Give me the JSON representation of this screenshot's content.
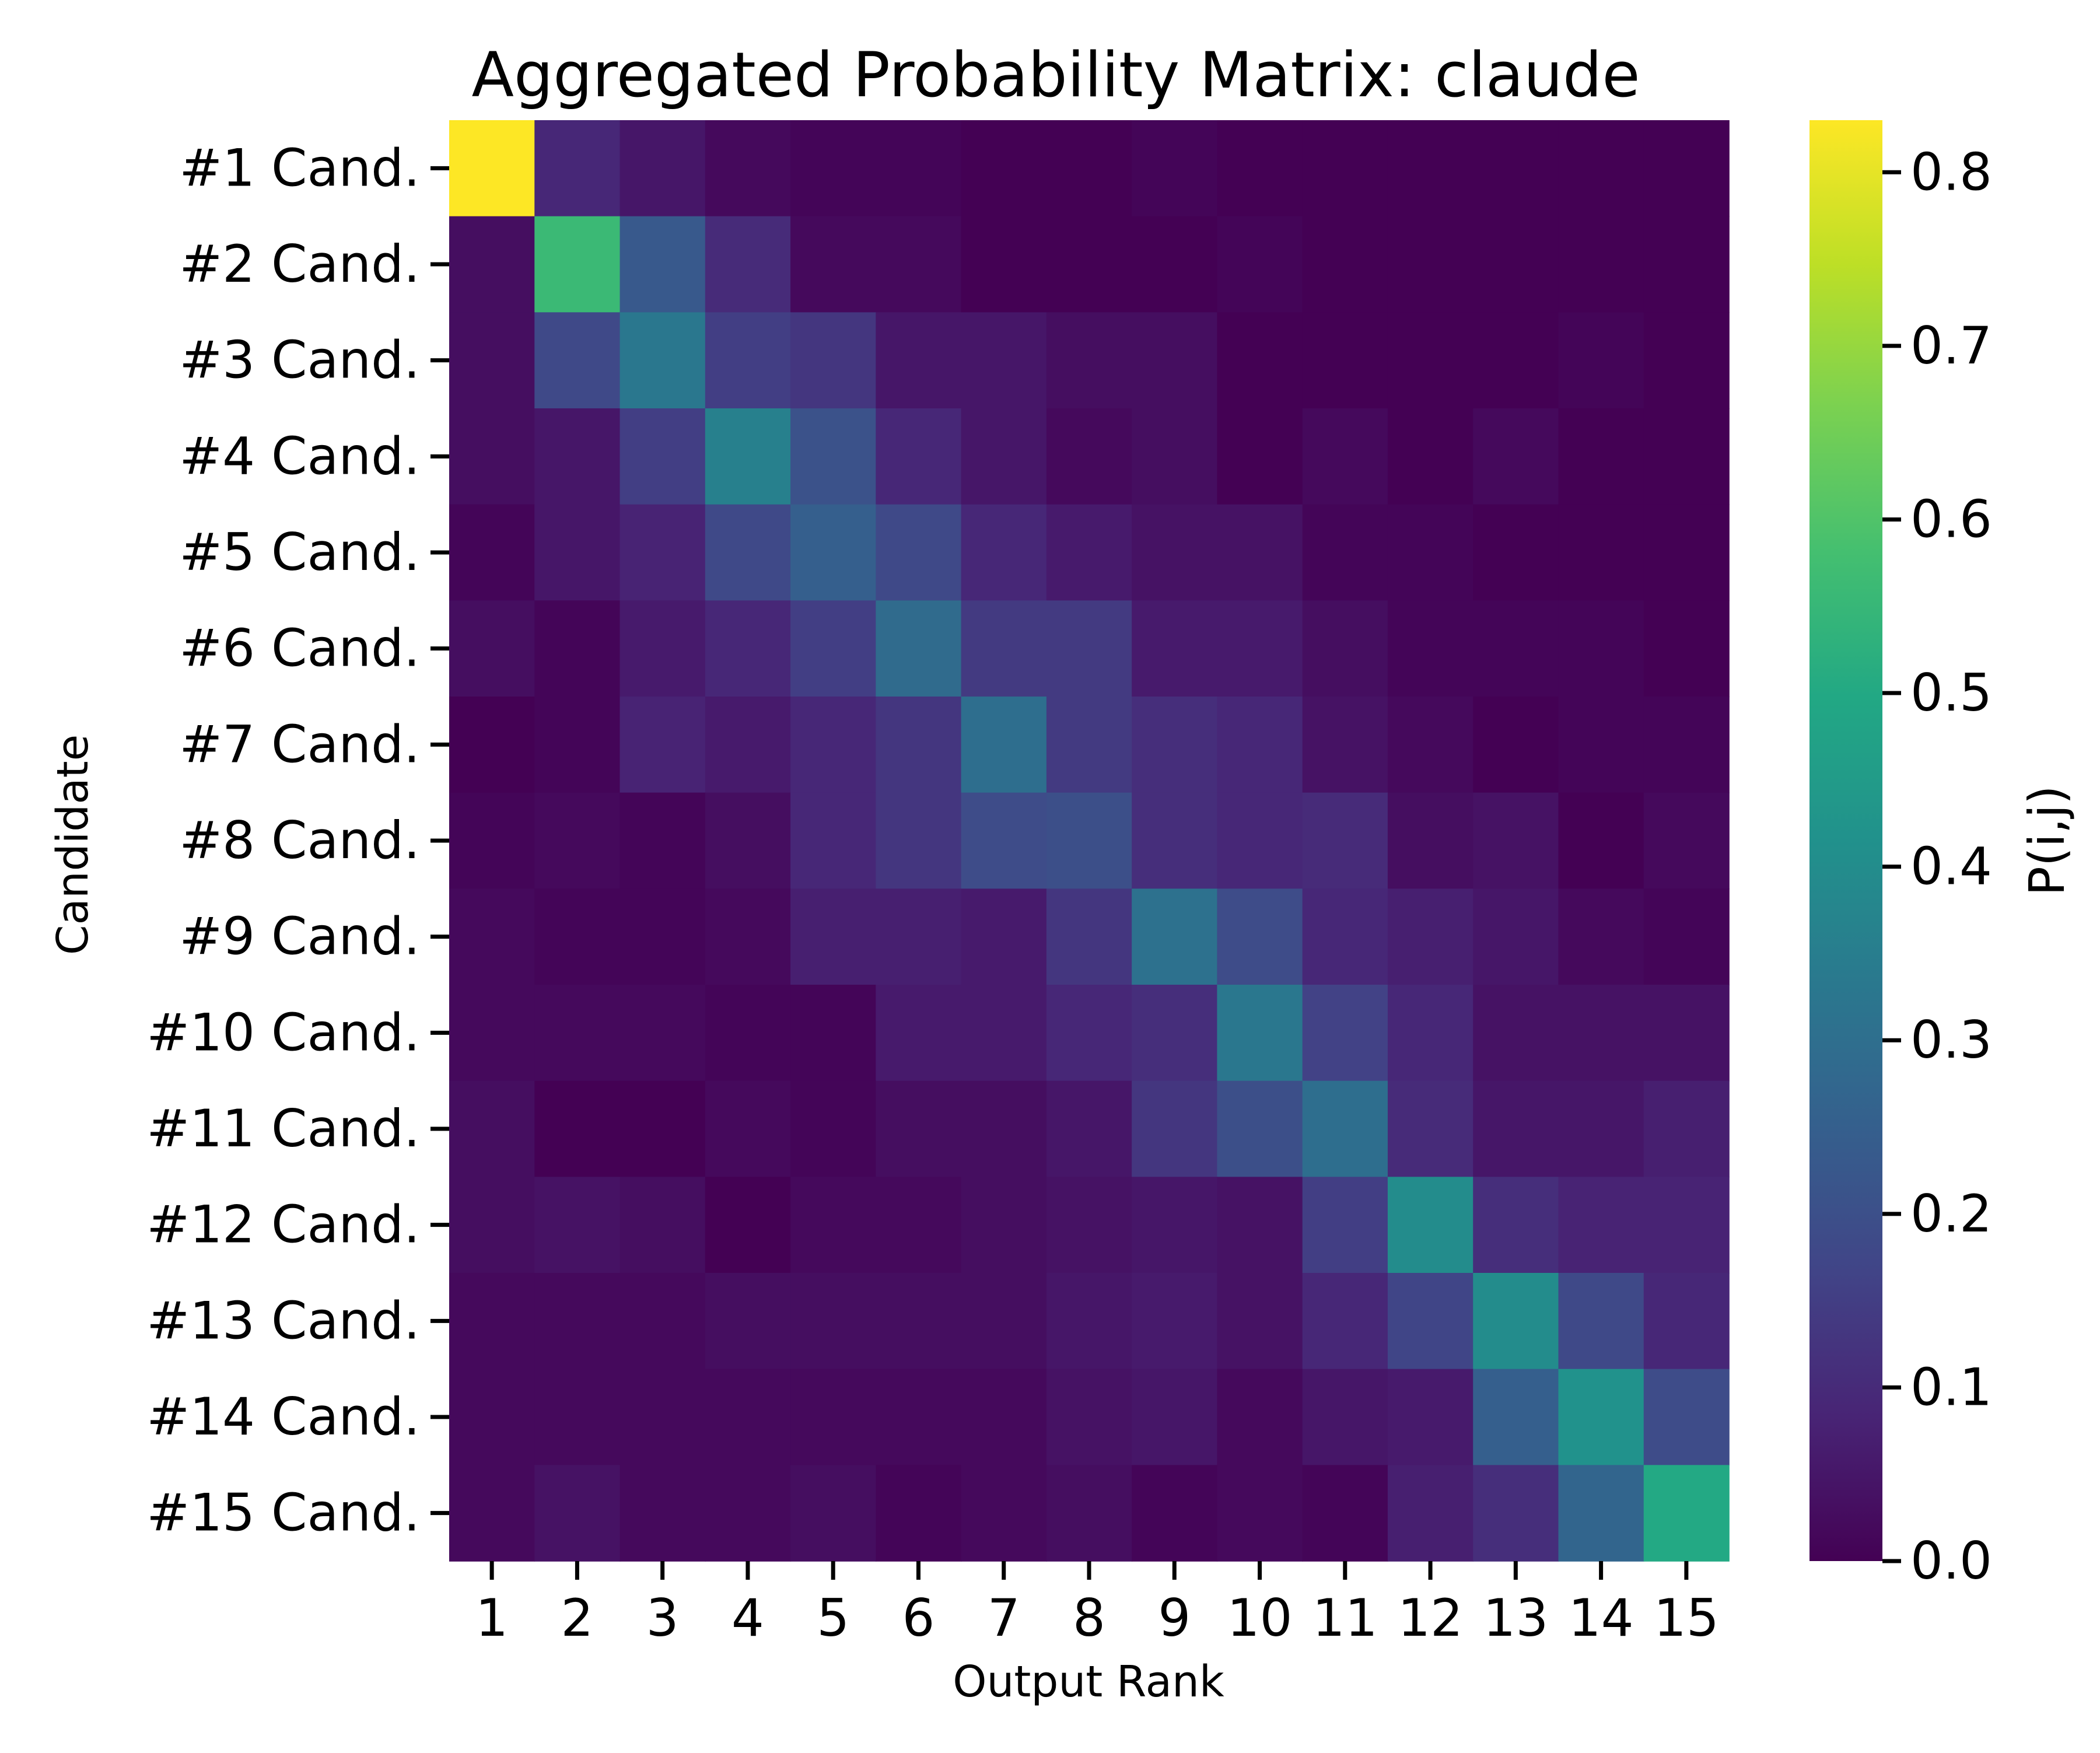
{
  "chart_data": {
    "type": "heatmap",
    "title": "Aggregated Probability Matrix: claude",
    "xlabel": "Output Rank",
    "ylabel": "Candidate",
    "colorbar_label": "P(i,j)",
    "colormap": "viridis",
    "vmin": 0.0,
    "vmax": 0.83,
    "colorbar_ticks": [
      "0.0",
      "0.1",
      "0.2",
      "0.3",
      "0.4",
      "0.5",
      "0.6",
      "0.7",
      "0.8"
    ],
    "x_categories": [
      "1",
      "2",
      "3",
      "4",
      "5",
      "6",
      "7",
      "8",
      "9",
      "10",
      "11",
      "12",
      "13",
      "14",
      "15"
    ],
    "y_categories": [
      "#1 Cand.",
      "#2 Cand.",
      "#3 Cand.",
      "#4 Cand.",
      "#5 Cand.",
      "#6 Cand.",
      "#7 Cand.",
      "#8 Cand.",
      "#9 Cand.",
      "#10 Cand.",
      "#11 Cand.",
      "#12 Cand.",
      "#13 Cand.",
      "#14 Cand.",
      "#15 Cand."
    ],
    "values": [
      [
        0.83,
        0.09,
        0.05,
        0.02,
        0.01,
        0.01,
        0.0,
        0.0,
        0.01,
        0.0,
        0.0,
        0.0,
        0.0,
        0.0,
        0.0
      ],
      [
        0.03,
        0.56,
        0.23,
        0.1,
        0.02,
        0.02,
        0.0,
        0.0,
        0.0,
        0.01,
        0.0,
        0.0,
        0.0,
        0.0,
        0.0
      ],
      [
        0.03,
        0.18,
        0.33,
        0.15,
        0.13,
        0.05,
        0.05,
        0.03,
        0.03,
        0.0,
        0.0,
        0.0,
        0.0,
        0.01,
        0.0
      ],
      [
        0.03,
        0.05,
        0.15,
        0.36,
        0.21,
        0.09,
        0.05,
        0.02,
        0.03,
        0.0,
        0.02,
        0.0,
        0.02,
        0.0,
        0.0
      ],
      [
        0.01,
        0.05,
        0.08,
        0.18,
        0.25,
        0.18,
        0.09,
        0.06,
        0.04,
        0.04,
        0.01,
        0.01,
        0.0,
        0.0,
        0.0
      ],
      [
        0.03,
        0.01,
        0.06,
        0.09,
        0.15,
        0.29,
        0.14,
        0.14,
        0.06,
        0.06,
        0.03,
        0.01,
        0.01,
        0.01,
        0.0
      ],
      [
        0.0,
        0.01,
        0.08,
        0.06,
        0.09,
        0.13,
        0.3,
        0.14,
        0.11,
        0.09,
        0.04,
        0.02,
        0.0,
        0.01,
        0.01
      ],
      [
        0.01,
        0.02,
        0.01,
        0.03,
        0.09,
        0.13,
        0.19,
        0.2,
        0.11,
        0.09,
        0.1,
        0.03,
        0.04,
        0.0,
        0.02
      ],
      [
        0.02,
        0.01,
        0.01,
        0.02,
        0.07,
        0.07,
        0.06,
        0.13,
        0.31,
        0.19,
        0.09,
        0.07,
        0.05,
        0.02,
        0.01
      ],
      [
        0.02,
        0.02,
        0.02,
        0.01,
        0.01,
        0.06,
        0.06,
        0.09,
        0.11,
        0.33,
        0.16,
        0.09,
        0.04,
        0.04,
        0.04
      ],
      [
        0.03,
        0.0,
        0.0,
        0.02,
        0.01,
        0.03,
        0.03,
        0.05,
        0.13,
        0.2,
        0.3,
        0.1,
        0.05,
        0.05,
        0.07
      ],
      [
        0.03,
        0.04,
        0.03,
        0.0,
        0.02,
        0.02,
        0.03,
        0.04,
        0.05,
        0.04,
        0.15,
        0.4,
        0.11,
        0.08,
        0.08
      ],
      [
        0.02,
        0.02,
        0.02,
        0.03,
        0.03,
        0.03,
        0.03,
        0.05,
        0.06,
        0.04,
        0.09,
        0.17,
        0.4,
        0.18,
        0.09
      ],
      [
        0.02,
        0.02,
        0.02,
        0.02,
        0.02,
        0.02,
        0.02,
        0.04,
        0.05,
        0.02,
        0.05,
        0.06,
        0.25,
        0.42,
        0.19
      ],
      [
        0.02,
        0.04,
        0.02,
        0.02,
        0.03,
        0.01,
        0.02,
        0.03,
        0.01,
        0.02,
        0.01,
        0.07,
        0.11,
        0.27,
        0.5
      ]
    ],
    "grid": false,
    "legend": "colorbar-right"
  }
}
